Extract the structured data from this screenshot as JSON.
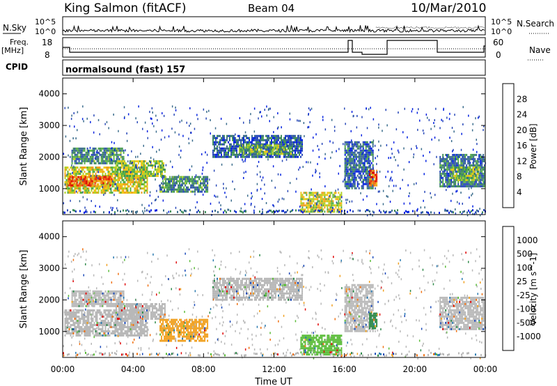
{
  "header": {
    "station": "King Salmon (fitACF)",
    "beam": "Beam 04",
    "date": "10/Mar/2010"
  },
  "panels": {
    "nsky_label": "N.Sky",
    "nsky_ticks": [
      "10^5",
      "10^0"
    ],
    "nsearch_label": "N.Search",
    "nsearch_ticks": [
      "10^5",
      "10^0"
    ],
    "freq_label": "Freq.",
    "freq_unit": "[MHz]",
    "freq_ticks": [
      "18",
      "8"
    ],
    "nave_label": "Nave",
    "nave_ticks": [
      "60",
      "0"
    ],
    "cpid_label": "CPID",
    "cpid_text": "normalsound (fast) 157"
  },
  "chart_data": [
    {
      "type": "heatmap",
      "name": "power",
      "ylabel": "Slant Range [km]",
      "yticks": [
        "1000",
        "2000",
        "3000",
        "4000"
      ],
      "ylim": [
        180,
        4500
      ],
      "xlim": [
        0,
        24
      ],
      "xticks": [
        "00:00",
        "04:00",
        "08:00",
        "12:00",
        "16:00",
        "20:00",
        "00:00"
      ],
      "colorbar": {
        "label": "Power [dB]",
        "ticks": [
          "28",
          "24",
          "20",
          "16",
          "12",
          "8",
          "4"
        ],
        "colors": [
          "#0020e0",
          "#2848b8",
          "#3a6c8c",
          "#3c8a58",
          "#58b048",
          "#b0d028",
          "#f0c818",
          "#f0a020",
          "#f07010",
          "#e83010",
          "#e00000"
        ]
      },
      "regions": [
        {
          "t0": 0.1,
          "t1": 4.8,
          "r0": 900,
          "r1": 1700,
          "level": 0.55
        },
        {
          "t0": 0.3,
          "t1": 2.8,
          "r0": 1100,
          "r1": 1400,
          "level": 0.8
        },
        {
          "t0": 0.5,
          "t1": 3.5,
          "r0": 1800,
          "r1": 2300,
          "level": 0.3
        },
        {
          "t0": 3.0,
          "t1": 5.8,
          "r0": 1400,
          "r1": 1900,
          "level": 0.45
        },
        {
          "t0": 5.5,
          "t1": 8.2,
          "r0": 900,
          "r1": 1400,
          "level": 0.3
        },
        {
          "t0": 8.5,
          "t1": 13.6,
          "r0": 2000,
          "r1": 2700,
          "level": 0.2
        },
        {
          "t0": 10.0,
          "t1": 13.0,
          "r0": 2100,
          "r1": 2400,
          "level": 0.4
        },
        {
          "t0": 13.5,
          "t1": 15.8,
          "r0": 250,
          "r1": 900,
          "level": 0.55
        },
        {
          "t0": 16.0,
          "t1": 17.6,
          "r0": 1000,
          "r1": 2500,
          "level": 0.2
        },
        {
          "t0": 17.4,
          "t1": 17.8,
          "r0": 1100,
          "r1": 1600,
          "level": 0.8
        },
        {
          "t0": 21.4,
          "t1": 24.0,
          "r0": 1100,
          "r1": 2100,
          "level": 0.25
        },
        {
          "t0": 22.0,
          "t1": 23.6,
          "r0": 1300,
          "r1": 1700,
          "level": 0.45
        }
      ]
    },
    {
      "type": "heatmap",
      "name": "velocity",
      "ylabel": "Slant Range [km]",
      "yticks": [
        "1000",
        "2000",
        "3000",
        "4000"
      ],
      "ylim": [
        180,
        4500
      ],
      "xlim": [
        0,
        24
      ],
      "xticks": [
        "00:00",
        "04:00",
        "08:00",
        "12:00",
        "16:00",
        "20:00",
        "00:00"
      ],
      "xlabel": "Time UT",
      "colorbar": {
        "label": "Velocity [m s^-1]",
        "ticks": [
          "1000",
          "500",
          "100",
          "25",
          "-25",
          "-100",
          "-500",
          "-1000"
        ],
        "colors": [
          "#1848b8",
          "#2a7ab0",
          "#2e8a4a",
          "#5abc38",
          "#b8b8b8",
          "#f0a020",
          "#f07010",
          "#e00000"
        ]
      },
      "regions": [
        {
          "t0": 0.1,
          "t1": 4.8,
          "r0": 900,
          "r1": 1700,
          "color": "#b8b8b8"
        },
        {
          "t0": 0.5,
          "t1": 3.5,
          "r0": 1800,
          "r1": 2300,
          "color": "#b8b8b8"
        },
        {
          "t0": 3.0,
          "t1": 5.8,
          "r0": 1400,
          "r1": 1900,
          "color": "#b8b8b8"
        },
        {
          "t0": 5.5,
          "t1": 8.2,
          "r0": 700,
          "r1": 1400,
          "color": "#f0a020"
        },
        {
          "t0": 8.5,
          "t1": 13.6,
          "r0": 2000,
          "r1": 2700,
          "color": "#b8b8b8"
        },
        {
          "t0": 13.5,
          "t1": 15.8,
          "r0": 250,
          "r1": 900,
          "color": "#5abc38"
        },
        {
          "t0": 16.0,
          "t1": 17.6,
          "r0": 1000,
          "r1": 2500,
          "color": "#b8b8b8"
        },
        {
          "t0": 17.4,
          "t1": 17.8,
          "r0": 1100,
          "r1": 1600,
          "color": "#2e8a4a"
        },
        {
          "t0": 21.4,
          "t1": 24.0,
          "r0": 1100,
          "r1": 2100,
          "color": "#b8b8b8"
        }
      ]
    }
  ]
}
